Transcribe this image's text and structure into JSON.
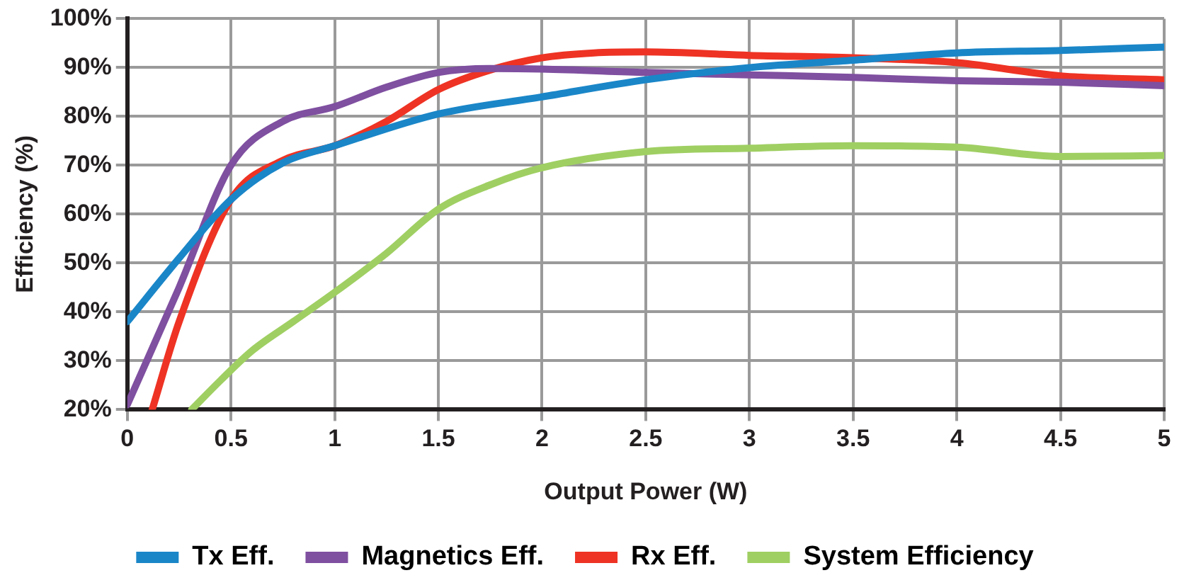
{
  "chart_data": {
    "type": "line",
    "xlabel": "Output Power (W)",
    "ylabel": "Efficiency (%)",
    "xlim": [
      0,
      5
    ],
    "xticks": [
      0,
      0.5,
      1,
      1.5,
      2,
      2.5,
      3,
      3.5,
      4,
      4.5,
      5
    ],
    "ylim": [
      20,
      100
    ],
    "yticks": [
      {
        "value": 20,
        "label": "20%"
      },
      {
        "value": 30,
        "label": "30%"
      },
      {
        "value": 40,
        "label": "40%"
      },
      {
        "value": 50,
        "label": "50%"
      },
      {
        "value": 60,
        "label": "60%"
      },
      {
        "value": 70,
        "label": "70%"
      },
      {
        "value": 80,
        "label": "80%"
      },
      {
        "value": 90,
        "label": "90%"
      },
      {
        "value": 100,
        "label": "100%"
      }
    ],
    "grid": true,
    "legend": "bottom",
    "marker": "none",
    "line_style": "solid",
    "series": [
      {
        "name": "Tx Eff.",
        "color": "#1a86c8",
        "x": [
          0,
          0.25,
          0.5,
          0.75,
          1,
          1.5,
          2,
          2.5,
          3,
          3.5,
          4,
          4.5,
          5
        ],
        "values": [
          38,
          51,
          63,
          70.5,
          74,
          80.5,
          84,
          87.5,
          90,
          91.5,
          93,
          93.5,
          94.2
        ]
      },
      {
        "name": "Magnetics Eff.",
        "color": "#7f4fa0",
        "x": [
          0,
          0.25,
          0.5,
          0.75,
          1,
          1.25,
          1.5,
          1.75,
          2,
          2.5,
          3,
          3.5,
          4,
          4.5,
          5
        ],
        "values": [
          21,
          45,
          70,
          79,
          82,
          86,
          89,
          89.8,
          89.7,
          89,
          88.5,
          88,
          87.3,
          87,
          86.3
        ]
      },
      {
        "name": "Rx Eff.",
        "color": "#ee3324",
        "x": [
          0.12,
          0.25,
          0.5,
          0.75,
          1,
          1.25,
          1.5,
          1.75,
          2,
          2.25,
          2.5,
          3,
          3.5,
          4,
          4.5,
          5
        ],
        "values": [
          20,
          38,
          63,
          71,
          74,
          79,
          85.5,
          89.5,
          92,
          93,
          93.2,
          92.5,
          92,
          91,
          88.3,
          87.5
        ]
      },
      {
        "name": "System Efficiency",
        "color": "#9fcf62",
        "x": [
          0.31,
          0.45,
          0.6,
          0.8,
          1,
          1.25,
          1.5,
          1.75,
          2,
          2.5,
          3,
          3.5,
          4,
          4.5,
          5
        ],
        "values": [
          20,
          26,
          32,
          38,
          44,
          52,
          61,
          66,
          69.5,
          72.8,
          73.5,
          74,
          73.7,
          71.8,
          72
        ]
      }
    ]
  }
}
